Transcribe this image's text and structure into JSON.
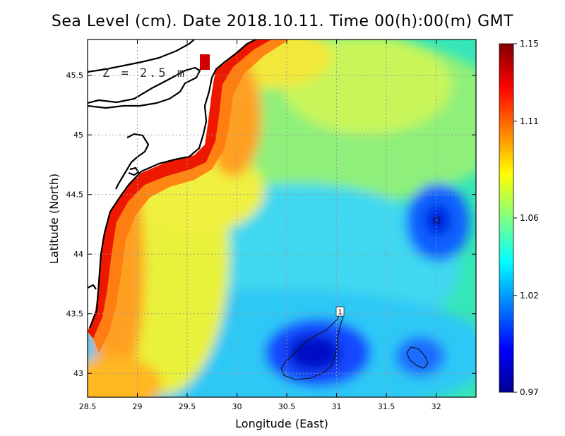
{
  "title": "Sea Level (cm). Date 2018.10.11. Time 00(h):00(m) GMT",
  "depth_label": "Z = 2.5 m",
  "contour_label": "1",
  "chart_data": {
    "type": "heatmap",
    "title": "Sea Level (cm). Date 2018.10.11. Time 00(h):00(m) GMT",
    "xlabel": "Longitude (East)",
    "ylabel": "Latitude (North)",
    "xlim": [
      28.5,
      32.4
    ],
    "ylim": [
      42.8,
      45.8
    ],
    "x_ticks": [
      28.5,
      29,
      29.5,
      30,
      30.5,
      31,
      31.5,
      32
    ],
    "x_tick_labels": [
      "28.5",
      "29",
      "29.5",
      "30",
      "30.5",
      "31",
      "31.5",
      "32"
    ],
    "y_ticks": [
      43,
      43.5,
      44,
      44.5,
      45,
      45.5
    ],
    "y_tick_labels": [
      "43",
      "43.5",
      "44",
      "44.5",
      "45",
      "45.5"
    ],
    "grid": true,
    "colorbar": {
      "min": 0.97,
      "max": 1.15,
      "ticks": [
        0.97,
        1.02,
        1.06,
        1.11,
        1.15
      ],
      "tick_labels": [
        "0.97",
        "1.02",
        "1.06",
        "1.11",
        "1.15"
      ],
      "colormap": "jet"
    },
    "field_features": [
      {
        "feature": "high-coastal-band",
        "lon": 29.5,
        "lat": 44.7,
        "value": 1.14
      },
      {
        "feature": "low-south-center",
        "lon": 30.85,
        "lat": 43.2,
        "value": 0.97
      },
      {
        "feature": "low-south-east",
        "lon": 31.8,
        "lat": 43.15,
        "value": 0.99
      },
      {
        "feature": "low-east",
        "lon": 32.0,
        "lat": 44.3,
        "value": 0.99
      }
    ]
  },
  "colors": {
    "land": "#ffffff",
    "coastline": "#000000",
    "grid": "#aaaaaa"
  }
}
